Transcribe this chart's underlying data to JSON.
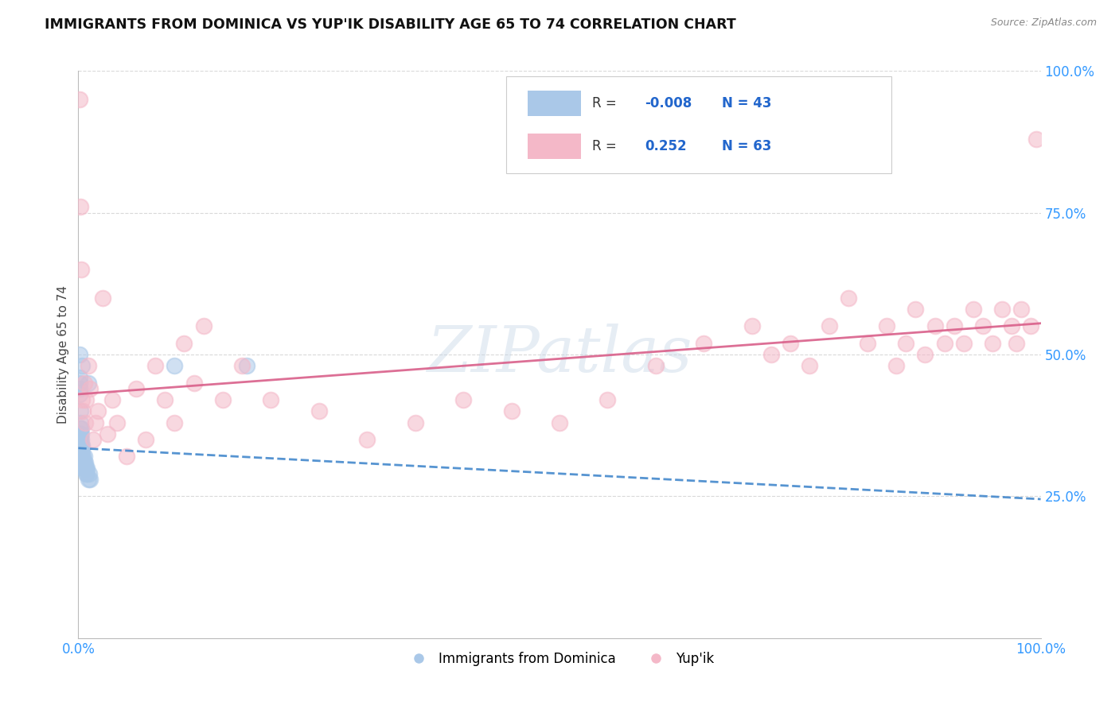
{
  "title": "IMMIGRANTS FROM DOMINICA VS YUP'IK DISABILITY AGE 65 TO 74 CORRELATION CHART",
  "source_text": "Source: ZipAtlas.com",
  "ylabel": "Disability Age 65 to 74",
  "xlim": [
    0.0,
    1.0
  ],
  "ylim": [
    0.0,
    1.0
  ],
  "x_tick_labels": [
    "0.0%",
    "100.0%"
  ],
  "x_tick_positions": [
    0.0,
    1.0
  ],
  "y_tick_labels_right": [
    "25.0%",
    "50.0%",
    "75.0%",
    "100.0%"
  ],
  "y_tick_positions_right": [
    0.25,
    0.5,
    0.75,
    1.0
  ],
  "watermark": "ZIPatlas",
  "legend_R1": "-0.008",
  "legend_N1": "43",
  "legend_R2": "0.252",
  "legend_N2": "63",
  "blue_color": "#aac8e8",
  "pink_color": "#f4b8c8",
  "blue_line_color": "#4488cc",
  "pink_line_color": "#d95f8a",
  "blue_scatter_x": [
    0.001,
    0.001,
    0.001,
    0.001,
    0.001,
    0.002,
    0.002,
    0.002,
    0.002,
    0.002,
    0.002,
    0.002,
    0.003,
    0.003,
    0.003,
    0.003,
    0.003,
    0.003,
    0.003,
    0.004,
    0.004,
    0.004,
    0.004,
    0.004,
    0.005,
    0.005,
    0.005,
    0.006,
    0.006,
    0.006,
    0.007,
    0.007,
    0.008,
    0.008,
    0.009,
    0.009,
    0.01,
    0.01,
    0.011,
    0.012,
    0.1,
    0.175,
    0.001
  ],
  "blue_scatter_y": [
    0.43,
    0.44,
    0.45,
    0.46,
    0.35,
    0.33,
    0.34,
    0.35,
    0.36,
    0.37,
    0.38,
    0.4,
    0.31,
    0.32,
    0.33,
    0.34,
    0.35,
    0.36,
    0.37,
    0.31,
    0.32,
    0.33,
    0.34,
    0.48,
    0.3,
    0.31,
    0.32,
    0.3,
    0.31,
    0.32,
    0.3,
    0.31,
    0.29,
    0.3,
    0.29,
    0.3,
    0.28,
    0.45,
    0.29,
    0.28,
    0.48,
    0.48,
    0.5
  ],
  "pink_scatter_x": [
    0.001,
    0.002,
    0.003,
    0.004,
    0.005,
    0.006,
    0.007,
    0.008,
    0.01,
    0.012,
    0.015,
    0.018,
    0.02,
    0.025,
    0.03,
    0.035,
    0.04,
    0.05,
    0.06,
    0.07,
    0.08,
    0.09,
    0.1,
    0.11,
    0.12,
    0.13,
    0.15,
    0.17,
    0.2,
    0.25,
    0.3,
    0.35,
    0.4,
    0.45,
    0.5,
    0.55,
    0.6,
    0.65,
    0.7,
    0.72,
    0.74,
    0.76,
    0.78,
    0.8,
    0.82,
    0.84,
    0.85,
    0.86,
    0.87,
    0.88,
    0.89,
    0.9,
    0.91,
    0.92,
    0.93,
    0.94,
    0.95,
    0.96,
    0.97,
    0.975,
    0.98,
    0.99,
    0.995
  ],
  "pink_scatter_y": [
    0.95,
    0.76,
    0.65,
    0.42,
    0.4,
    0.45,
    0.38,
    0.42,
    0.48,
    0.44,
    0.35,
    0.38,
    0.4,
    0.6,
    0.36,
    0.42,
    0.38,
    0.32,
    0.44,
    0.35,
    0.48,
    0.42,
    0.38,
    0.52,
    0.45,
    0.55,
    0.42,
    0.48,
    0.42,
    0.4,
    0.35,
    0.38,
    0.42,
    0.4,
    0.38,
    0.42,
    0.48,
    0.52,
    0.55,
    0.5,
    0.52,
    0.48,
    0.55,
    0.6,
    0.52,
    0.55,
    0.48,
    0.52,
    0.58,
    0.5,
    0.55,
    0.52,
    0.55,
    0.52,
    0.58,
    0.55,
    0.52,
    0.58,
    0.55,
    0.52,
    0.58,
    0.55,
    0.88
  ],
  "blue_trend_x": [
    0.0,
    1.0
  ],
  "blue_trend_y": [
    0.335,
    0.245
  ],
  "pink_trend_x": [
    0.0,
    1.0
  ],
  "pink_trend_y": [
    0.43,
    0.555
  ],
  "grid_color": "#d0d0d0",
  "background_color": "#ffffff"
}
